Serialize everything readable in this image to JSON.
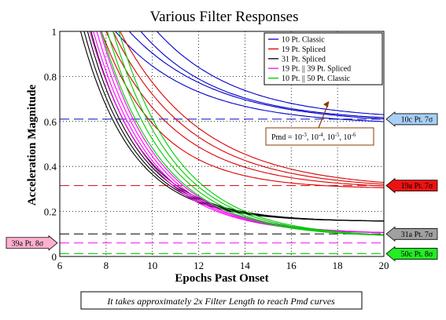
{
  "chart_data": {
    "type": "line",
    "title": "Various Filter Responses",
    "xlabel": "Epochs Past Onset",
    "ylabel": "Acceleration Magnitude",
    "xlim": [
      6,
      20
    ],
    "ylim": [
      0,
      1
    ],
    "xticks": [
      6,
      8,
      10,
      12,
      14,
      16,
      18,
      20
    ],
    "yticks": [
      0,
      0.2,
      0.4,
      0.6,
      0.8,
      1
    ],
    "ytick_labels": [
      "0",
      "0.2",
      "0.4",
      "0.6",
      "0.8",
      "1"
    ],
    "grid": true,
    "legend_position": "top-right",
    "legend": [
      {
        "label": "10 Pt. Classic",
        "color": "#0000cc"
      },
      {
        "label": "19 Pt. Spliced",
        "color": "#dd0000"
      },
      {
        "label": "31 Pt. Spliced",
        "color": "#000000"
      },
      {
        "label": "19 Pt. || 39 Pt. Spliced",
        "color": "#ff00ff"
      },
      {
        "label": "10 Pt. || 50 Pt. Classic",
        "color": "#00cc00"
      }
    ],
    "series": [
      {
        "color": "#0000cc",
        "group": "10 Pt. Classic",
        "asymptote": 0.585,
        "k": 0.29,
        "x_at_top": 8.4
      },
      {
        "color": "#0000cc",
        "group": "10 Pt. Classic",
        "asymptote": 0.59,
        "k": 0.27,
        "x_at_top": 9.0
      },
      {
        "color": "#0000cc",
        "group": "10 Pt. Classic",
        "asymptote": 0.6,
        "k": 0.3,
        "x_at_top": 9.5
      },
      {
        "color": "#0000cc",
        "group": "10 Pt. Classic",
        "asymptote": 0.607,
        "k": 0.29,
        "x_at_top": 10.2
      },
      {
        "color": "#dd0000",
        "group": "19 Pt. Spliced",
        "asymptote": 0.3,
        "k": 0.4,
        "x_at_top": 7.8
      },
      {
        "color": "#dd0000",
        "group": "19 Pt. Spliced",
        "asymptote": 0.3,
        "k": 0.33,
        "x_at_top": 8.0
      },
      {
        "color": "#dd0000",
        "group": "19 Pt. Spliced",
        "asymptote": 0.3,
        "k": 0.3,
        "x_at_top": 8.3
      },
      {
        "color": "#dd0000",
        "group": "19 Pt. Spliced",
        "asymptote": 0.3,
        "k": 0.28,
        "x_at_top": 8.6
      },
      {
        "color": "#000000",
        "group": "31 Pt. Spliced",
        "asymptote": 0.155,
        "k": 0.45,
        "x_at_top": 6.9
      },
      {
        "color": "#000000",
        "group": "31 Pt. Spliced",
        "asymptote": 0.155,
        "k": 0.45,
        "x_at_top": 7.05
      },
      {
        "color": "#000000",
        "group": "31 Pt. Spliced",
        "asymptote": 0.155,
        "k": 0.45,
        "x_at_top": 7.2
      },
      {
        "color": "#000000",
        "group": "31 Pt. Spliced",
        "asymptote": 0.155,
        "k": 0.45,
        "x_at_top": 7.35
      },
      {
        "color": "#ff00ff",
        "group": "19 Pt. || 39 Pt. Spliced",
        "asymptote": 0.1,
        "k": 0.4,
        "x_at_top": 7.3
      },
      {
        "color": "#ff00ff",
        "group": "19 Pt. || 39 Pt. Spliced",
        "asymptote": 0.1,
        "k": 0.4,
        "x_at_top": 7.45
      },
      {
        "color": "#ff00ff",
        "group": "19 Pt. || 39 Pt. Spliced",
        "asymptote": 0.1,
        "k": 0.4,
        "x_at_top": 7.6
      },
      {
        "color": "#ff00ff",
        "group": "19 Pt. || 39 Pt. Spliced",
        "asymptote": 0.1,
        "k": 0.4,
        "x_at_top": 7.75
      },
      {
        "color": "#00cc00",
        "group": "10 Pt. || 50 Pt. Classic",
        "asymptote": 0.085,
        "k": 0.38,
        "x_at_top": 7.8
      },
      {
        "color": "#00cc00",
        "group": "10 Pt. || 50 Pt. Classic",
        "asymptote": 0.085,
        "k": 0.38,
        "x_at_top": 8.05
      },
      {
        "color": "#00cc00",
        "group": "10 Pt. || 50 Pt. Classic",
        "asymptote": 0.085,
        "k": 0.38,
        "x_at_top": 8.3
      },
      {
        "color": "#00cc00",
        "group": "10 Pt. || 50 Pt. Classic",
        "asymptote": 0.085,
        "k": 0.38,
        "x_at_top": 8.55
      }
    ],
    "reference_lines": [
      {
        "y": 0.61,
        "color": "#0000cc",
        "label": "10c Pt. 7σ",
        "arrow_side": "right",
        "arrow_fill": "#a9d0f5"
      },
      {
        "y": 0.315,
        "color": "#dd0000",
        "label": "19a Pt. 7σ",
        "arrow_side": "right",
        "arrow_fill": "#ee1111"
      },
      {
        "y": 0.1,
        "color": "#000000",
        "label": "31a Pt. 7σ",
        "arrow_side": "right",
        "arrow_fill": "#a0a0a0"
      },
      {
        "y": 0.06,
        "color": "#ff00ff",
        "label": "39a Pt. 8σ",
        "arrow_side": "left",
        "arrow_fill": "#ffb0d0"
      },
      {
        "y": 0.012,
        "color": "#00cc00",
        "label": "50c Pt. 8σ",
        "arrow_side": "right",
        "arrow_fill": "#22ee22"
      }
    ],
    "annotation": {
      "prefix": "Pmd = ",
      "terms": [
        {
          "base": "10",
          "exp": "-3"
        },
        {
          "base": "10",
          "exp": "-4"
        },
        {
          "base": "10",
          "exp": "-5"
        },
        {
          "base": "10",
          "exp": "-6"
        }
      ],
      "separator": ", "
    }
  },
  "note": "It takes approximately 2x Filter Length to reach Pmd curves"
}
